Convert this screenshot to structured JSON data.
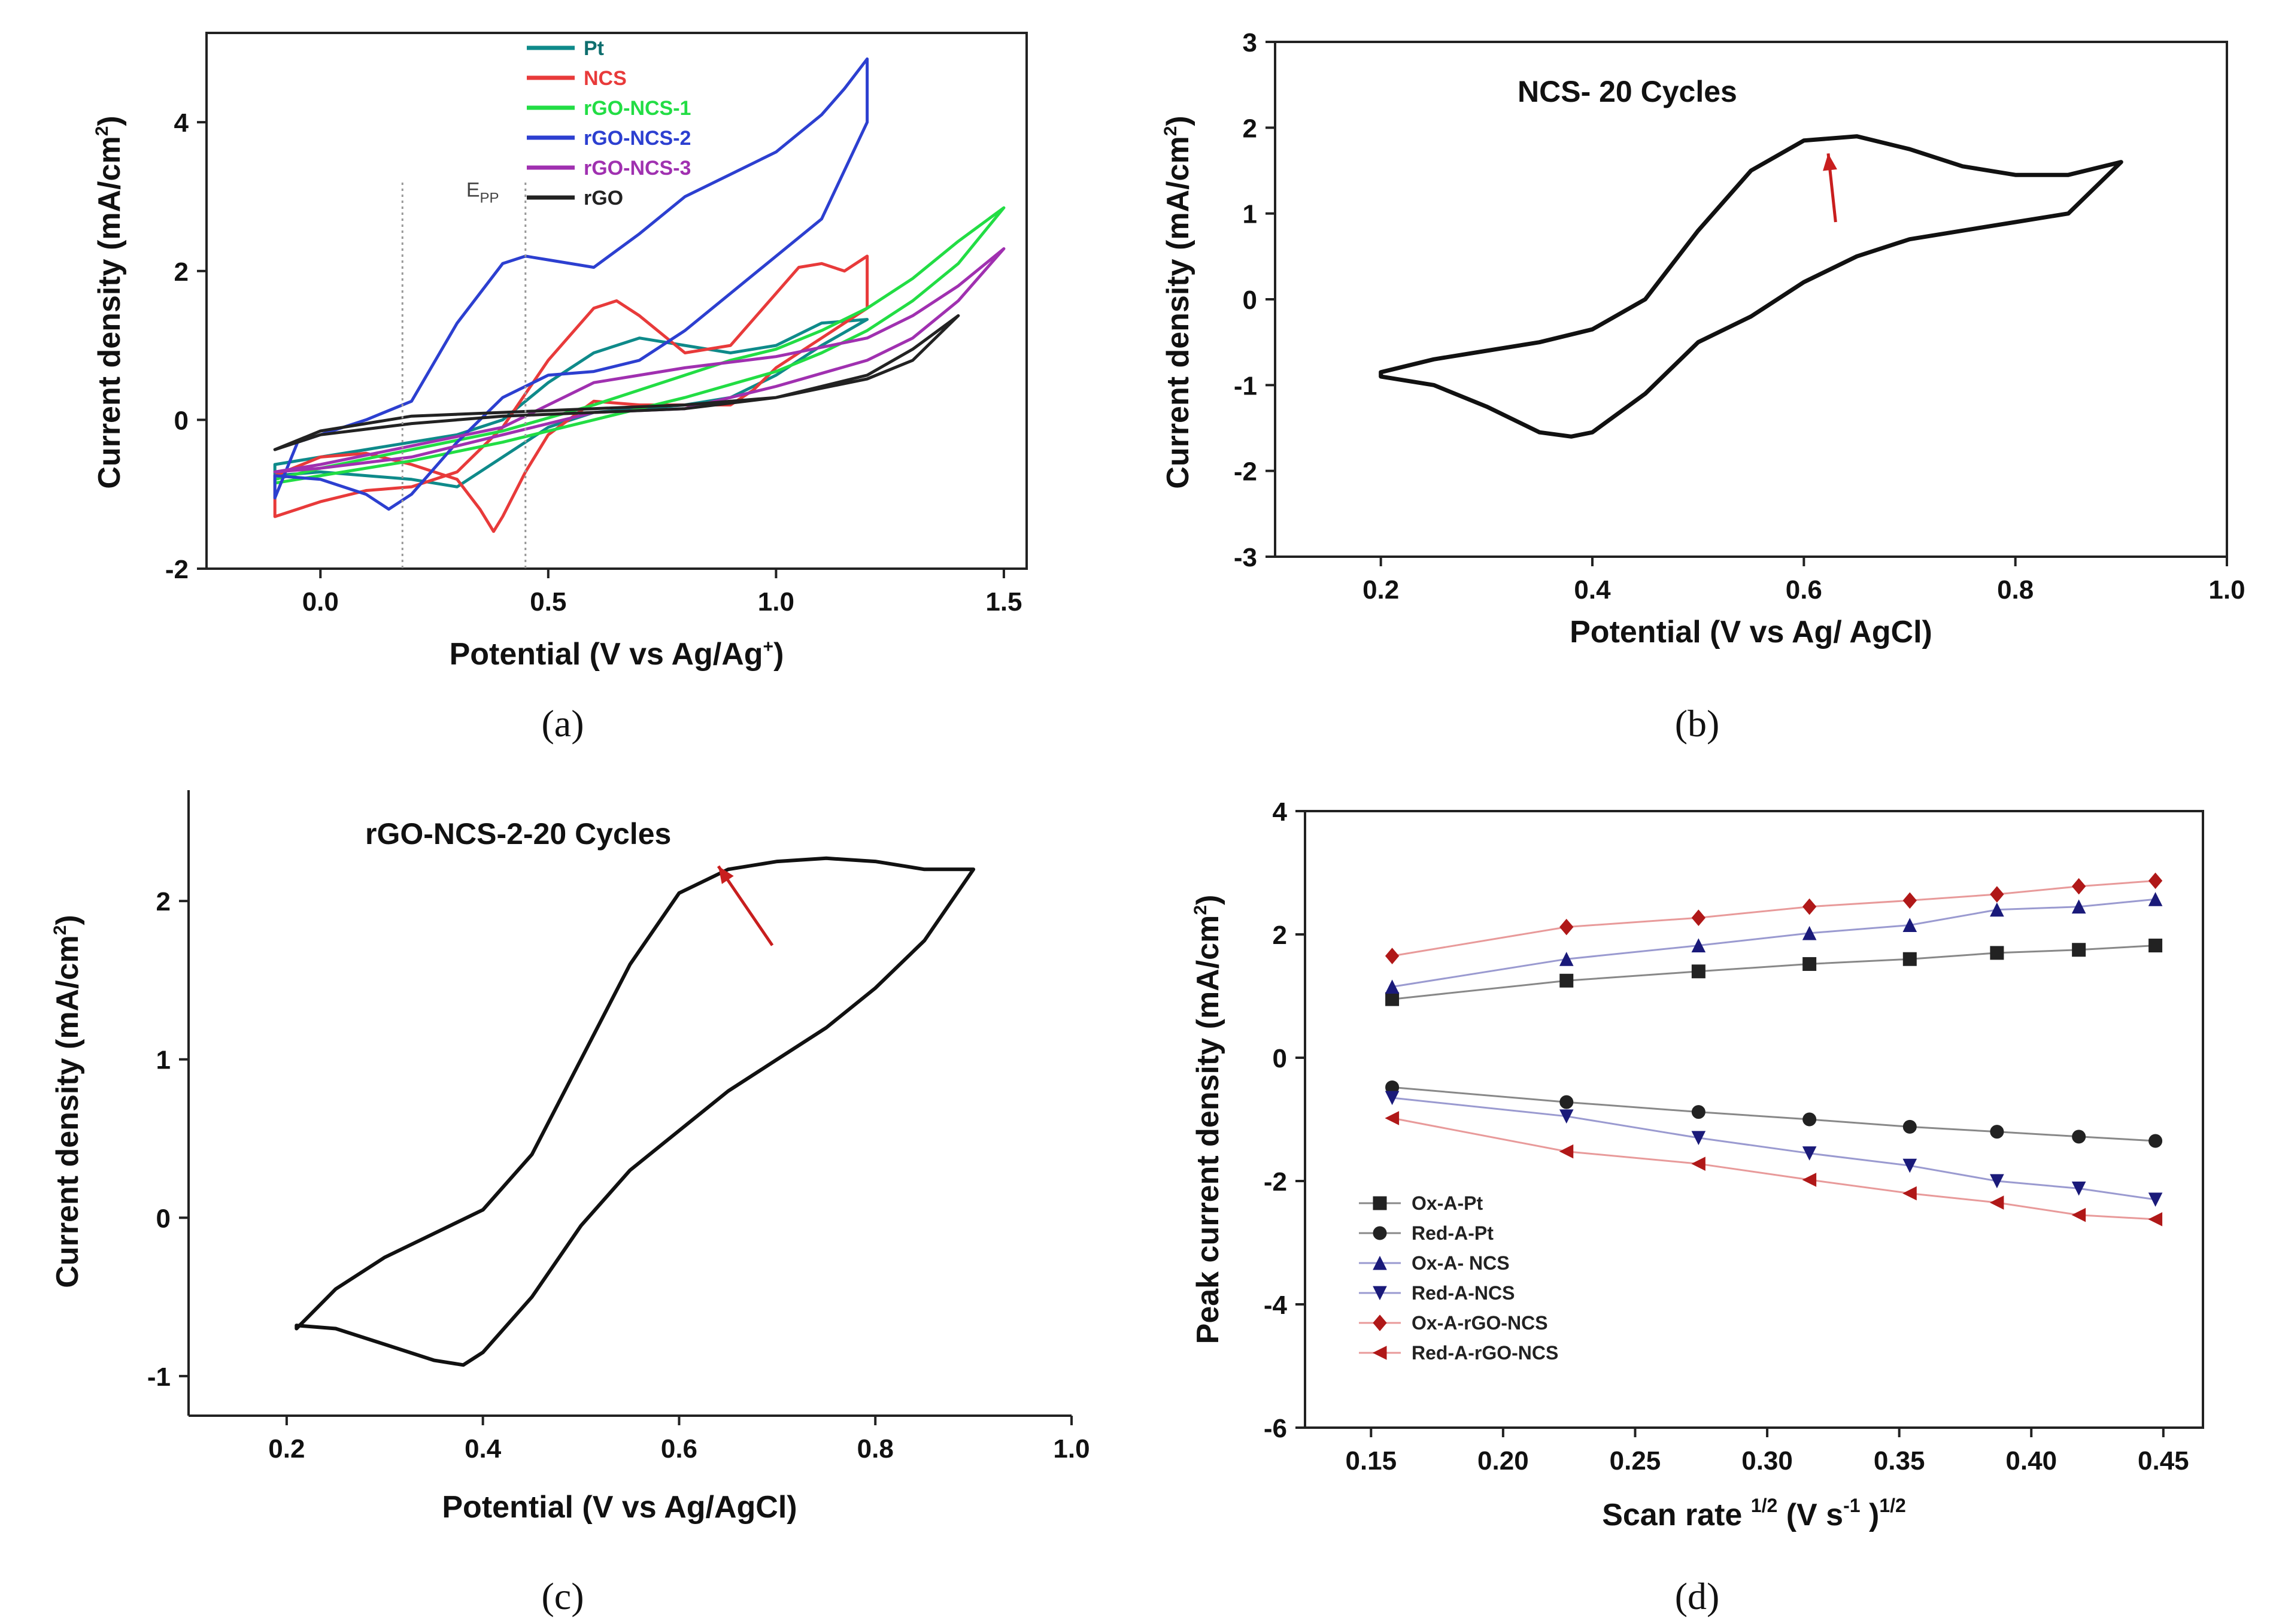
{
  "chart_data": [
    {
      "id": "a",
      "type": "line",
      "panel_label": "(a)",
      "xlabel": "Potential (V vs Ag/Ag",
      "xlabel_sup": "+",
      "xlabel_end": ")",
      "ylabel": "Current density (mA/cm",
      "ylabel_sup": "2",
      "ylabel_end": ")",
      "xlim": [
        -0.25,
        1.55
      ],
      "ylim": [
        -2,
        5.2
      ],
      "xticks": [
        0.0,
        0.5,
        1.0,
        1.5
      ],
      "xtick_labels": [
        "0.0",
        "0.5",
        "1.0",
        "1.5"
      ],
      "yticks": [
        -2,
        0,
        2,
        4
      ],
      "ytick_labels": [
        "-2",
        "0",
        "2",
        "4"
      ],
      "annotation": {
        "text": "E",
        "sub": "PP",
        "x": 0.32,
        "y": 3.0
      },
      "vlines": [
        0.18,
        0.45
      ],
      "legend_position": "top-center",
      "series": [
        {
          "name": "Pt",
          "color": "#0e8a8a",
          "closed": true,
          "x": [
            -0.1,
            0.0,
            0.1,
            0.2,
            0.3,
            0.4,
            0.5,
            0.6,
            0.7,
            0.8,
            0.9,
            1.0,
            1.1,
            1.2,
            1.2,
            1.1,
            1.0,
            0.9,
            0.8,
            0.7,
            0.6,
            0.5,
            0.4,
            0.3,
            0.2,
            0.1,
            0.0,
            -0.1
          ],
          "y": [
            -0.6,
            -0.5,
            -0.4,
            -0.3,
            -0.2,
            0.0,
            0.5,
            0.9,
            1.1,
            1.0,
            0.9,
            1.0,
            1.3,
            1.35,
            1.35,
            1.0,
            0.6,
            0.3,
            0.2,
            0.15,
            0.1,
            -0.1,
            -0.5,
            -0.9,
            -0.8,
            -0.75,
            -0.7,
            -0.75
          ]
        },
        {
          "name": "NCS",
          "color": "#e83a3a",
          "closed": true,
          "x": [
            -0.1,
            0.0,
            0.1,
            0.2,
            0.3,
            0.4,
            0.5,
            0.6,
            0.65,
            0.7,
            0.8,
            0.9,
            1.0,
            1.05,
            1.1,
            1.15,
            1.2,
            1.2,
            1.1,
            1.0,
            0.95,
            0.9,
            0.8,
            0.7,
            0.6,
            0.5,
            0.45,
            0.4,
            0.38,
            0.35,
            0.3,
            0.2,
            0.1,
            0.0,
            -0.1
          ],
          "y": [
            -1.3,
            -1.1,
            -0.95,
            -0.9,
            -0.7,
            -0.1,
            0.8,
            1.5,
            1.6,
            1.4,
            0.9,
            1.0,
            1.7,
            2.05,
            2.1,
            2.0,
            2.2,
            1.5,
            1.1,
            0.7,
            0.4,
            0.2,
            0.2,
            0.2,
            0.25,
            -0.2,
            -0.7,
            -1.3,
            -1.5,
            -1.2,
            -0.8,
            -0.6,
            -0.45,
            -0.5,
            -0.75
          ]
        },
        {
          "name": "rGO-NCS-1",
          "color": "#22dd44",
          "closed": true,
          "x": [
            -0.1,
            0.0,
            0.2,
            0.4,
            0.6,
            0.8,
            0.9,
            1.0,
            1.1,
            1.2,
            1.3,
            1.4,
            1.5,
            1.5,
            1.4,
            1.3,
            1.2,
            1.1,
            1.0,
            0.8,
            0.6,
            0.4,
            0.2,
            0.0,
            -0.1
          ],
          "y": [
            -0.8,
            -0.65,
            -0.4,
            -0.15,
            0.2,
            0.6,
            0.8,
            0.95,
            1.2,
            1.5,
            1.9,
            2.4,
            2.85,
            2.85,
            2.1,
            1.6,
            1.2,
            0.9,
            0.65,
            0.3,
            0.0,
            -0.3,
            -0.55,
            -0.75,
            -0.85
          ]
        },
        {
          "name": "rGO-NCS-2",
          "color": "#2c3fd0",
          "closed": true,
          "x": [
            -0.1,
            -0.05,
            0.0,
            0.1,
            0.2,
            0.3,
            0.4,
            0.45,
            0.5,
            0.6,
            0.7,
            0.8,
            0.9,
            1.0,
            1.1,
            1.15,
            1.2,
            1.2,
            1.1,
            1.0,
            0.9,
            0.8,
            0.7,
            0.6,
            0.5,
            0.4,
            0.3,
            0.2,
            0.15,
            0.1,
            0.0,
            -0.1
          ],
          "y": [
            -1.05,
            -0.3,
            -0.2,
            0.0,
            0.25,
            1.3,
            2.1,
            2.2,
            2.15,
            2.05,
            2.5,
            3.0,
            3.3,
            3.6,
            4.1,
            4.45,
            4.85,
            4.0,
            2.7,
            2.2,
            1.7,
            1.2,
            0.8,
            0.65,
            0.6,
            0.3,
            -0.3,
            -1.0,
            -1.2,
            -1.0,
            -0.8,
            -0.75
          ]
        },
        {
          "name": "rGO-NCS-3",
          "color": "#a030b0",
          "closed": true,
          "x": [
            -0.1,
            0.0,
            0.2,
            0.4,
            0.6,
            0.8,
            1.0,
            1.2,
            1.3,
            1.4,
            1.5,
            1.5,
            1.4,
            1.3,
            1.2,
            1.0,
            0.8,
            0.6,
            0.4,
            0.2,
            0.0,
            -0.1
          ],
          "y": [
            -0.7,
            -0.6,
            -0.35,
            -0.1,
            0.5,
            0.7,
            0.85,
            1.1,
            1.4,
            1.8,
            2.3,
            2.3,
            1.6,
            1.1,
            0.8,
            0.45,
            0.15,
            0.1,
            -0.2,
            -0.5,
            -0.65,
            -0.7
          ]
        },
        {
          "name": "rGO",
          "color": "#222222",
          "closed": true,
          "x": [
            -0.1,
            0.0,
            0.2,
            0.4,
            0.6,
            0.8,
            1.0,
            1.2,
            1.3,
            1.4,
            1.4,
            1.3,
            1.2,
            1.0,
            0.8,
            0.6,
            0.4,
            0.2,
            0.0,
            -0.1
          ],
          "y": [
            -0.4,
            -0.15,
            0.05,
            0.1,
            0.15,
            0.2,
            0.3,
            0.6,
            0.95,
            1.4,
            1.4,
            0.8,
            0.55,
            0.3,
            0.15,
            0.1,
            0.05,
            -0.05,
            -0.2,
            -0.4
          ]
        }
      ]
    },
    {
      "id": "b",
      "type": "line",
      "panel_label": "(b)",
      "title": "NCS- 20 Cycles",
      "xlabel": "Potential (V vs Ag/ AgCl)",
      "ylabel": "Current density (mA/cm",
      "ylabel_sup": "2",
      "ylabel_end": ")",
      "xlim": [
        0.1,
        1.0
      ],
      "ylim": [
        -3,
        3
      ],
      "xticks": [
        0.2,
        0.4,
        0.6,
        0.8,
        1.0
      ],
      "xtick_labels": [
        "0.2",
        "0.4",
        "0.6",
        "0.8",
        "1.0"
      ],
      "yticks": [
        -3,
        -2,
        -1,
        0,
        1,
        2,
        3
      ],
      "ytick_labels": [
        "-3",
        "-2",
        "-1",
        "0",
        "1",
        "2",
        "3"
      ],
      "arrow": {
        "x1": 0.63,
        "y1": 0.9,
        "x2": 0.623,
        "y2": 1.7
      },
      "series": [
        {
          "name": "NCS",
          "color": "#111111",
          "closed": true,
          "x": [
            0.2,
            0.25,
            0.3,
            0.35,
            0.4,
            0.45,
            0.5,
            0.55,
            0.6,
            0.65,
            0.7,
            0.75,
            0.8,
            0.85,
            0.9,
            0.9,
            0.85,
            0.8,
            0.75,
            0.7,
            0.65,
            0.6,
            0.55,
            0.5,
            0.45,
            0.4,
            0.38,
            0.35,
            0.3,
            0.25,
            0.2
          ],
          "y": [
            -0.85,
            -0.7,
            -0.6,
            -0.5,
            -0.35,
            0.0,
            0.8,
            1.5,
            1.85,
            1.9,
            1.75,
            1.55,
            1.45,
            1.45,
            1.6,
            1.6,
            1.0,
            0.9,
            0.8,
            0.7,
            0.5,
            0.2,
            -0.2,
            -0.5,
            -1.1,
            -1.55,
            -1.6,
            -1.55,
            -1.25,
            -1.0,
            -0.9
          ]
        }
      ]
    },
    {
      "id": "c",
      "type": "line",
      "panel_label": "(c)",
      "title": "rGO-NCS-2-20 Cycles",
      "xlabel": "Potential (V vs Ag/AgCl)",
      "ylabel": "Current density (mA/cm",
      "ylabel_sup": "2",
      "ylabel_end": ")",
      "xlim": [
        0.1,
        1.0
      ],
      "ylim": [
        -1.25,
        2.7
      ],
      "xticks": [
        0.2,
        0.4,
        0.6,
        0.8,
        1.0
      ],
      "xtick_labels": [
        "0.2",
        "0.4",
        "0.6",
        "0.8",
        "1.0"
      ],
      "yticks": [
        -1,
        0,
        1,
        2
      ],
      "ytick_labels": [
        "-1",
        "0",
        "1",
        "2"
      ],
      "arrow": {
        "x1": 0.695,
        "y1": 1.72,
        "x2": 0.64,
        "y2": 2.22
      },
      "series": [
        {
          "name": "rGO-NCS-2",
          "color": "#111111",
          "closed": true,
          "x": [
            0.21,
            0.25,
            0.3,
            0.35,
            0.4,
            0.45,
            0.5,
            0.55,
            0.6,
            0.65,
            0.7,
            0.75,
            0.8,
            0.85,
            0.9,
            0.9,
            0.85,
            0.8,
            0.75,
            0.7,
            0.65,
            0.6,
            0.55,
            0.5,
            0.45,
            0.4,
            0.38,
            0.35,
            0.3,
            0.25,
            0.21
          ],
          "y": [
            -0.7,
            -0.45,
            -0.25,
            -0.1,
            0.05,
            0.4,
            1.0,
            1.6,
            2.05,
            2.2,
            2.25,
            2.27,
            2.25,
            2.2,
            2.2,
            2.2,
            1.75,
            1.45,
            1.2,
            1.0,
            0.8,
            0.55,
            0.3,
            -0.05,
            -0.5,
            -0.85,
            -0.93,
            -0.9,
            -0.8,
            -0.7,
            -0.68
          ]
        }
      ]
    },
    {
      "id": "d",
      "type": "line",
      "panel_label": "(d)",
      "xlabel": "Scan rate ",
      "xlabel_sup1": "1/2",
      "xlabel_mid": " (V s",
      "xlabel_sup2": "-1",
      "xlabel_mid2": " )",
      "xlabel_sup3": "1/2",
      "ylabel": "Peak current density (mA/cm",
      "ylabel_sup": "2",
      "ylabel_end": ")",
      "xlim": [
        0.125,
        0.465
      ],
      "ylim": [
        -6,
        4
      ],
      "xticks": [
        0.15,
        0.2,
        0.25,
        0.3,
        0.35,
        0.4,
        0.45
      ],
      "xtick_labels": [
        "0.15",
        "0.20",
        "0.25",
        "0.30",
        "0.35",
        "0.40",
        "0.45"
      ],
      "yticks": [
        -6,
        -4,
        -2,
        0,
        2,
        4
      ],
      "ytick_labels": [
        "-6",
        "-4",
        "-2",
        "0",
        "2",
        "4"
      ],
      "x": [
        0.158,
        0.224,
        0.274,
        0.316,
        0.354,
        0.387,
        0.418,
        0.447
      ],
      "legend_position": "bottom-left",
      "series": [
        {
          "name": "Ox-A-Pt",
          "color": "#222222",
          "marker": "square",
          "values": [
            0.95,
            1.25,
            1.4,
            1.52,
            1.6,
            1.7,
            1.75,
            1.82
          ]
        },
        {
          "name": "Red-A-Pt",
          "color": "#222222",
          "marker": "circle",
          "values": [
            -0.48,
            -0.72,
            -0.88,
            -1.0,
            -1.12,
            -1.2,
            -1.28,
            -1.35
          ]
        },
        {
          "name": "Ox-A- NCS",
          "color": "#1a1a7a",
          "marker": "triangle-up",
          "values": [
            1.15,
            1.6,
            1.82,
            2.02,
            2.15,
            2.4,
            2.45,
            2.57
          ]
        },
        {
          "name": "Red-A-NCS",
          "color": "#1a1a7a",
          "marker": "triangle-down",
          "values": [
            -0.65,
            -0.95,
            -1.3,
            -1.55,
            -1.75,
            -2.0,
            -2.12,
            -2.3
          ]
        },
        {
          "name": "Ox-A-rGO-NCS",
          "color": "#b01818",
          "marker": "diamond",
          "values": [
            1.65,
            2.12,
            2.27,
            2.45,
            2.55,
            2.65,
            2.78,
            2.87
          ]
        },
        {
          "name": "Red-A-rGO-NCS",
          "color": "#b01818",
          "marker": "triangle-left",
          "values": [
            -0.98,
            -1.52,
            -1.72,
            -1.98,
            -2.2,
            -2.35,
            -2.55,
            -2.62
          ]
        }
      ]
    }
  ]
}
